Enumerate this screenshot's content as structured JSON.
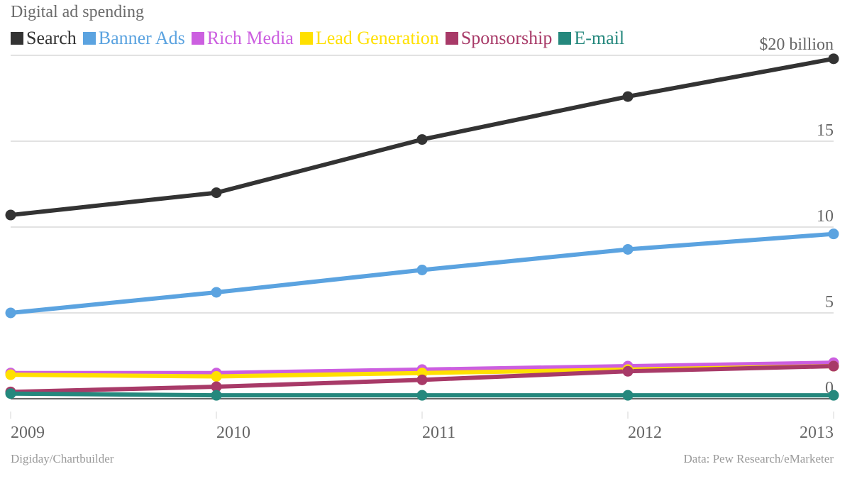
{
  "chart_data": {
    "type": "line",
    "title": "Digital ad spending",
    "xlabel": "",
    "ylabel": "",
    "x": [
      "2009",
      "2010",
      "2011",
      "2012",
      "2013"
    ],
    "ylim": [
      0,
      20
    ],
    "yticks": [
      0,
      5,
      10,
      15,
      20
    ],
    "ytick_labels": [
      "0",
      "5",
      "10",
      "15",
      "$20 billion"
    ],
    "grid": true,
    "legend_position": "top-left",
    "series": [
      {
        "name": "Search",
        "color": "#333333",
        "values": [
          10.7,
          12.0,
          15.1,
          17.6,
          19.8
        ]
      },
      {
        "name": "Banner Ads",
        "color": "#5ba3e0",
        "values": [
          5.0,
          6.2,
          7.5,
          8.7,
          9.6
        ]
      },
      {
        "name": "Rich Media",
        "color": "#cc5fe0",
        "values": [
          1.5,
          1.5,
          1.7,
          1.9,
          2.1
        ]
      },
      {
        "name": "Lead Generation",
        "color": "#ffe000",
        "values": [
          1.4,
          1.3,
          1.5,
          1.7,
          1.9
        ]
      },
      {
        "name": "Sponsorship",
        "color": "#a83a68",
        "values": [
          0.4,
          0.7,
          1.1,
          1.6,
          1.9
        ]
      },
      {
        "name": "E-mail",
        "color": "#25887d",
        "values": [
          0.3,
          0.2,
          0.2,
          0.2,
          0.2
        ]
      }
    ]
  },
  "footer": {
    "credit": "Digiday/Chartbuilder",
    "source": "Data: Pew Research/eMarketer"
  }
}
